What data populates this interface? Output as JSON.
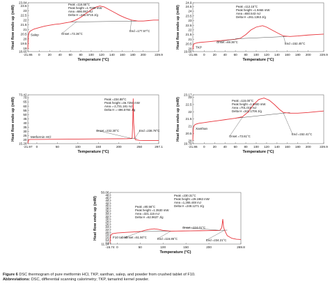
{
  "chart_data": [
    {
      "type": "line",
      "sample_label": "Salep",
      "xlabel": "Temperature (°C)",
      "ylabel": "Heat flow endo up (mW)",
      "xlim": [
        -21.86,
        229.9
      ],
      "ylim": [
        18.65,
        23.84
      ],
      "xticks_labels": [
        "-21.86",
        "0",
        "20",
        "40",
        "60",
        "80",
        "100",
        "120",
        "140",
        "160",
        "180",
        "200",
        "229.9"
      ],
      "yticks_labels": [
        "18.65",
        "19",
        "19.5",
        "20",
        "20.5",
        "21",
        "21.5",
        "22",
        "22.5",
        "23",
        "23.5",
        "23.84"
      ],
      "yticks_values": [
        18.65,
        19,
        19.5,
        20,
        20.5,
        21,
        21.5,
        22,
        22.5,
        23,
        23.5,
        23.84
      ],
      "x": [
        -21.86,
        -21,
        -20,
        -18,
        -15,
        -10,
        0,
        10,
        20,
        30,
        40,
        50,
        60,
        70,
        80,
        90,
        100,
        110,
        116.55,
        125,
        135,
        145,
        155,
        165,
        177.57,
        190,
        200,
        210,
        220,
        229.9
      ],
      "y": [
        18.9,
        20.2,
        20.6,
        20.8,
        20.9,
        21.05,
        21.2,
        21.35,
        21.45,
        21.55,
        21.6,
        21.7,
        21.8,
        22.0,
        22.3,
        22.7,
        23.1,
        23.4,
        23.5,
        23.4,
        23.1,
        22.8,
        22.5,
        22.25,
        22.0,
        21.9,
        21.9,
        21.95,
        22.0,
        22.0
      ],
      "baseline": {
        "x": [
          60,
          200
        ],
        "y": [
          21.8,
          21.9
        ]
      },
      "annotations": {
        "peak": [
          "Peak =116.55°C",
          "Peak height =1.7039 mW",
          "Area =686.957 mJ",
          "Delta H =241.9715 J/g"
        ],
        "onset": "Onset =72.36°C",
        "end": "End =177.57°C"
      },
      "onset_point": [
        72.36,
        21.85
      ],
      "end_point": [
        177.57,
        22.0
      ]
    },
    {
      "type": "line",
      "sample_label": "TKP",
      "xlabel": "Temperature (°C)",
      "ylabel": "Heat flow endo up (mW)",
      "xlim": [
        -21.86,
        229.9
      ],
      "ylim": [
        19.68,
        24.9
      ],
      "xticks_labels": [
        "-21.86",
        "0",
        "20",
        "40",
        "60",
        "80",
        "100",
        "120",
        "140",
        "160",
        "180",
        "200",
        "229.9"
      ],
      "yticks_labels": [
        "19.68",
        "20",
        "20.5",
        "21",
        "21.5",
        "22",
        "22.5",
        "23",
        "23.5",
        "24",
        "24.5",
        "24.9"
      ],
      "yticks_values": [
        19.68,
        20,
        20.5,
        21,
        21.5,
        22,
        22.5,
        23,
        23.5,
        24,
        24.5,
        24.9
      ],
      "x": [
        -21.86,
        -21,
        -20,
        -18,
        -15,
        -10,
        0,
        10,
        20,
        30,
        40,
        50,
        60,
        69.36,
        80,
        90,
        100,
        112.15,
        120,
        130,
        140,
        152.45,
        165,
        180,
        200,
        215,
        229.9
      ],
      "y": [
        19.9,
        20.3,
        20.5,
        20.55,
        20.6,
        20.65,
        20.7,
        20.75,
        20.8,
        20.85,
        20.9,
        20.95,
        21.0,
        21.1,
        21.5,
        22.0,
        22.3,
        22.45,
        22.3,
        22.0,
        21.7,
        21.35,
        21.3,
        21.35,
        21.45,
        21.5,
        21.55
      ],
      "baseline": {
        "x": [
          60,
          160
        ],
        "y": [
          21.05,
          21.3
        ]
      },
      "annotations": {
        "peak": [
          "Peak =112.15°C",
          "Peak height =1.9466 mW",
          "Area =650.543 mJ",
          "Delta H =261.1363 J/g"
        ],
        "onset": "Onset =69.36°C",
        "end": "End =152.45°C"
      },
      "onset_point": [
        69.36,
        21.1
      ],
      "end_point": [
        152.45,
        21.35
      ]
    },
    {
      "type": "line",
      "sample_label": "Metformin HCl",
      "xlabel": "Temperature (°C)",
      "ylabel": "Heat flow endo up (mW)",
      "xlim": [
        -21.97,
        297.1
      ],
      "ylim": [
        15.28,
        73.42
      ],
      "xticks_labels": [
        "-21.97",
        "0",
        "50",
        "100",
        "150",
        "200",
        "250",
        "297.1"
      ],
      "yticks_labels": [
        "15.28",
        "20",
        "25",
        "30",
        "35",
        "40",
        "45",
        "50",
        "55",
        "60",
        "65",
        "70",
        "73.42"
      ],
      "yticks_values": [
        15.28,
        20,
        25,
        30,
        35,
        40,
        45,
        50,
        55,
        60,
        65,
        70,
        73.42
      ],
      "x": [
        -21.97,
        -20,
        -15,
        0,
        50,
        100,
        150,
        200,
        220,
        230,
        232.3,
        234.0,
        234.88,
        236.0,
        238.78,
        240,
        250,
        270,
        297.1
      ],
      "y": [
        15.8,
        20.0,
        20.3,
        20.3,
        20.5,
        20.7,
        20.9,
        21.1,
        21.2,
        21.4,
        22.0,
        45.0,
        69.0,
        40.0,
        21.8,
        20.0,
        19.2,
        19.0,
        19.1
      ],
      "baseline": {
        "x": [
          226,
          244
        ],
        "y": [
          21.25,
          21.6
        ]
      },
      "annotations": {
        "peak": [
          "Peak =234.88°C",
          "Peak height =46.7294 mW",
          "Area =-2,731.181 mJ",
          "Delta H =-496.5784 J/g"
        ],
        "onset": "Onset =232.30°C",
        "end": "End =238.78°C"
      },
      "onset_point": [
        232.3,
        21.35
      ],
      "end_point": [
        238.78,
        21.6
      ]
    },
    {
      "type": "line",
      "sample_label": "Xanthan",
      "xlabel": "Temperature (°C)",
      "ylabel": "Heat flow endo up (mW)",
      "xlim": [
        -21.86,
        229.9
      ],
      "ylim": [
        19.79,
        23.17
      ],
      "xticks_labels": [
        "-21.86",
        "0",
        "20",
        "40",
        "60",
        "80",
        "100",
        "120",
        "140",
        "160",
        "180",
        "200",
        "229.9"
      ],
      "yticks_labels": [
        "19.79",
        "20",
        "20.5",
        "21",
        "21.5",
        "22",
        "22.5",
        "23",
        "23.17"
      ],
      "yticks_values": [
        19.79,
        20,
        20.5,
        21,
        21.5,
        22,
        22.5,
        23,
        23.17
      ],
      "x": [
        -21.86,
        -21,
        -20,
        -18,
        -15,
        -10,
        0,
        10,
        20,
        30,
        40,
        50,
        60,
        73.61,
        85,
        95,
        105,
        115,
        125,
        135,
        145,
        152.41,
        165,
        180,
        200,
        215,
        229.9
      ],
      "y": [
        20.0,
        20.8,
        21.0,
        21.1,
        21.15,
        21.2,
        21.25,
        21.3,
        21.35,
        21.4,
        21.45,
        21.5,
        21.55,
        21.65,
        22.0,
        22.5,
        22.85,
        22.95,
        22.8,
        22.5,
        22.15,
        21.95,
        21.9,
        21.9,
        21.95,
        22.0,
        22.05
      ],
      "baseline": {
        "x": [
          60,
          165
        ],
        "y": [
          21.55,
          21.95
        ]
      },
      "annotations": {
        "peak": [
          "Peak =115.00°C",
          "Peak height =1.8400 mW",
          "Area =701.018 mJ",
          "Delta H =341.1706 J/g"
        ],
        "onset": "Onset =73.61°C",
        "end": "End =152.41°C"
      },
      "onset_point": [
        73.61,
        21.62
      ],
      "end_point": [
        152.41,
        21.9
      ]
    },
    {
      "type": "line",
      "sample_label": "F10 tablet",
      "xlabel": "Temperature (°C)",
      "ylabel": "Heat flow endo up (mW)",
      "xlim": [
        -15.74,
        269.8
      ],
      "ylim": [
        11.14,
        50.06
      ],
      "xticks_labels": [
        "-15.74",
        "0",
        "50",
        "100",
        "150",
        "200",
        "269.8"
      ],
      "yticks_labels": [
        "11.14",
        "12",
        "14",
        "16",
        "18",
        "20",
        "22",
        "24",
        "26",
        "28",
        "30",
        "32",
        "34",
        "36",
        "38",
        "40",
        "42",
        "44",
        "46",
        "48",
        "50.06"
      ],
      "yticks_values": [
        11.14,
        12,
        14,
        16,
        18,
        20,
        22,
        24,
        26,
        28,
        30,
        32,
        34,
        36,
        38,
        40,
        42,
        44,
        46,
        48,
        50.06
      ],
      "x": [
        -15.74,
        -15,
        -14,
        -12,
        -10,
        0,
        20,
        40,
        51.5,
        60,
        70,
        80.56,
        90,
        100,
        116.86,
        140,
        160,
        180,
        200,
        215,
        224.01,
        228,
        230.31,
        232,
        234.21,
        240,
        250,
        260,
        269.8
      ],
      "y": [
        11.9,
        16.0,
        17.8,
        18.6,
        19.0,
        19.5,
        20.0,
        20.4,
        20.6,
        21.5,
        22.2,
        22.6,
        22.2,
        21.4,
        20.9,
        21.0,
        21.1,
        21.2,
        21.3,
        21.4,
        21.5,
        23.5,
        30.0,
        24.0,
        21.6,
        17.5,
        15.5,
        14.8,
        14.6
      ],
      "baselines": [
        {
          "x": [
            40,
            125
          ],
          "y": [
            20.5,
            20.95
          ]
        },
        {
          "x": [
            215,
            240
          ],
          "y": [
            21.45,
            21.65
          ]
        }
      ],
      "annotations": {
        "peak1": [
          "Peak =80.56°C",
          "Peak height =1.3530 mW",
          "Area =321.115 mJ",
          "Delta H =62.9637 J/g"
        ],
        "onset1": "Onset =51.50°C",
        "end1": "End =116.86°C",
        "peak2": [
          "Peak =230.31°C",
          "Peak height =29.1963 mW",
          "Area =1,265.448 mJ",
          "Delta H =248.1271 J/g"
        ],
        "onset2": "Onset =224.01°C",
        "end2": "End =234.21°C"
      },
      "onset1_point": [
        51.5,
        20.55
      ],
      "end1_point": [
        116.86,
        20.9
      ],
      "onset2_point": [
        224.01,
        21.5
      ],
      "end2_point": [
        234.21,
        21.6
      ]
    }
  ],
  "caption": {
    "figure_label": "Figure 6",
    "figure_text": "DSC thermogram of pure metformin HCl, TKP, xanthan, salep, and powder from crushed tablet of F10.",
    "abbrev_label": "Abbreviations:",
    "abbrev_text": "DSC, differential scanning calorimetry; TKP, tamarind kernel powder."
  },
  "colors": {
    "curve": "#e8333a",
    "frame": "#555555",
    "text": "#111111"
  }
}
